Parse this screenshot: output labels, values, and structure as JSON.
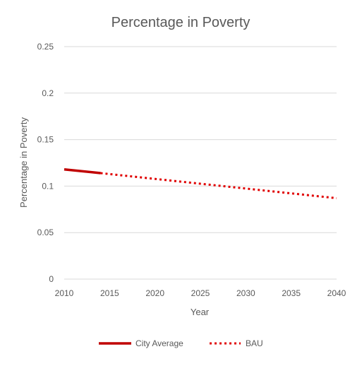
{
  "chart_data": {
    "type": "line",
    "title": "Percentage in Poverty",
    "xlabel": "Year",
    "ylabel": "Percentage in Poverty",
    "xlim": [
      2010,
      2040
    ],
    "ylim": [
      0,
      0.25
    ],
    "x_ticks": [
      2010,
      2015,
      2020,
      2025,
      2030,
      2035,
      2040
    ],
    "x_tick_labels": [
      "2010",
      "2015",
      "2020",
      "2025",
      "2030",
      "2035",
      "2040"
    ],
    "y_ticks": [
      0,
      0.05,
      0.1,
      0.15,
      0.2,
      0.25
    ],
    "y_tick_labels": [
      "0",
      "0.05",
      "0.1",
      "0.15",
      "0.2",
      "0.25"
    ],
    "grid": "horizontal",
    "legend_position": "bottom",
    "series": [
      {
        "name": "City Average",
        "style": "solid",
        "color": "#c00000",
        "points": [
          {
            "x": 2010,
            "y": 0.118
          },
          {
            "x": 2014,
            "y": 0.114
          }
        ]
      },
      {
        "name": "BAU",
        "style": "dotted",
        "color": "#e00000",
        "points": [
          {
            "x": 2014,
            "y": 0.114
          },
          {
            "x": 2040,
            "y": 0.087
          }
        ]
      }
    ]
  },
  "colors": {
    "grid": "#d9d9d9",
    "text": "#595959",
    "title": "#595959"
  }
}
